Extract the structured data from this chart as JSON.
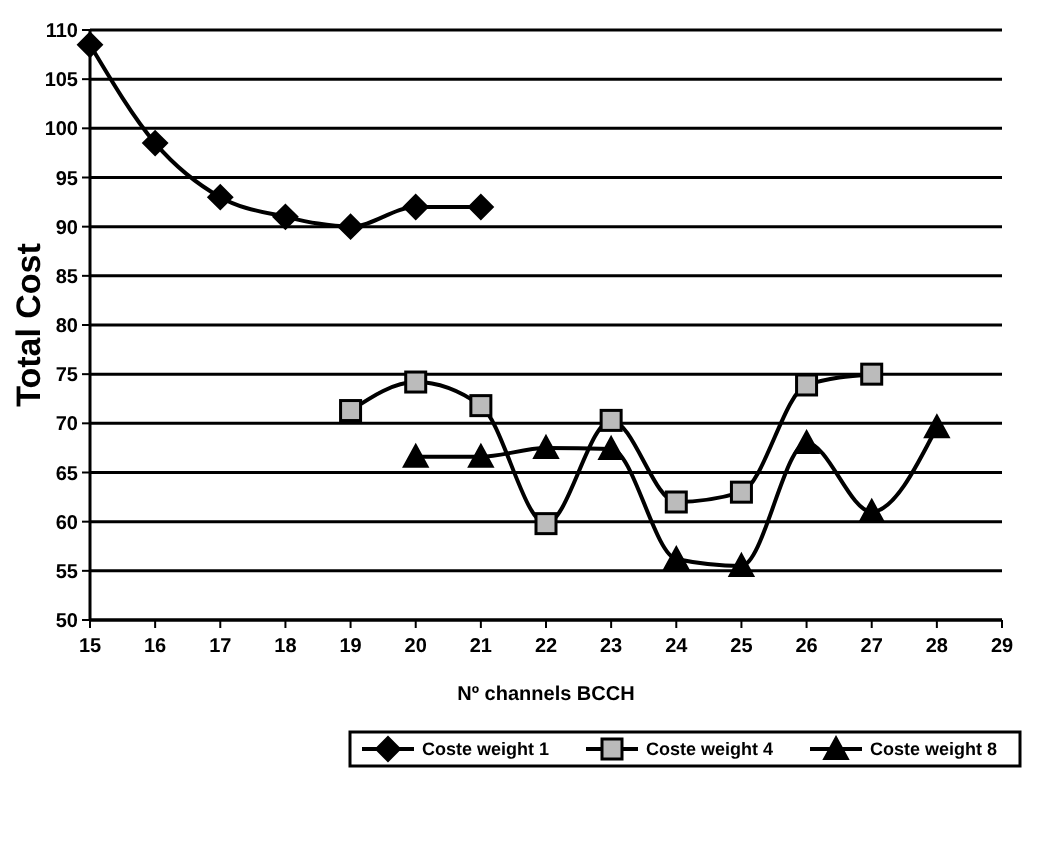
{
  "chart_data": {
    "type": "line",
    "xlabel": "Nº channels BCCH",
    "ylabel": "Total Cost",
    "xlim": [
      15,
      29
    ],
    "xticks": [
      15,
      16,
      17,
      18,
      19,
      20,
      21,
      22,
      23,
      24,
      25,
      26,
      27,
      28,
      29
    ],
    "ylim": [
      50,
      110
    ],
    "yticks": [
      50,
      55,
      60,
      65,
      70,
      75,
      80,
      85,
      90,
      95,
      100,
      105,
      110
    ],
    "grid": "y",
    "legend": "bottom",
    "series": [
      {
        "name": "Coste weight 1",
        "color": "#000000",
        "marker": "diamond",
        "x": [
          15,
          16,
          17,
          18,
          19,
          20,
          21
        ],
        "values": [
          108.5,
          98.5,
          93,
          91,
          90,
          92,
          92
        ]
      },
      {
        "name": "Coste weight 4",
        "color": "#000000",
        "marker": "square",
        "x": [
          19,
          20,
          21,
          22,
          23,
          24,
          25,
          26,
          27
        ],
        "values": [
          71.3,
          74.2,
          71.8,
          59.8,
          70.3,
          62,
          63,
          73.9,
          75
        ]
      },
      {
        "name": "Coste weight 8",
        "color": "#000000",
        "marker": "triangle",
        "x": [
          20,
          21,
          22,
          23,
          24,
          25,
          26,
          27,
          28
        ],
        "values": [
          66.6,
          66.6,
          67.5,
          67.4,
          56.2,
          55.5,
          68,
          61,
          69.6
        ]
      }
    ]
  }
}
